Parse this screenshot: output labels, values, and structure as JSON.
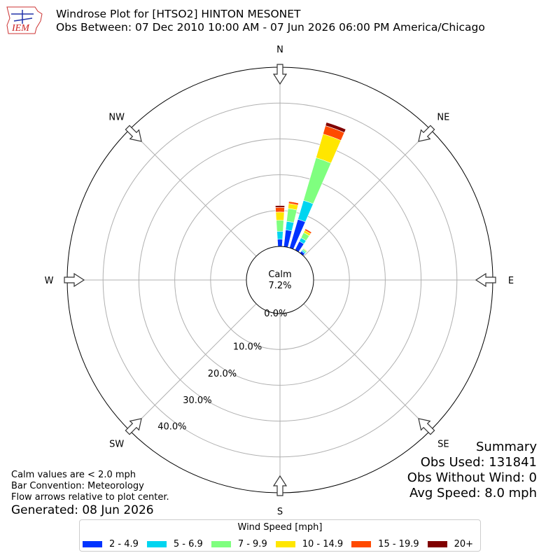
{
  "header": {
    "title_line1": "Windrose Plot for [HTSO2] HINTON MESONET",
    "title_line2": "Obs Between: 07 Dec 2010 10:00 AM - 07 Jun 2026 06:00 PM America/Chicago",
    "logo_text": "IEM"
  },
  "summary": {
    "heading": "Summary",
    "obs_used": "Obs Used: 131841",
    "obs_without_wind": "Obs Without Wind: 0",
    "avg_speed": "Avg Speed: 8.0 mph"
  },
  "notes": {
    "calm_note": "Calm values are < 2.0 mph",
    "bar_convention": "Bar Convention: Meteorology",
    "flow_arrows": "Flow arrows relative to plot center.",
    "generated": "Generated: 08 Jun 2026"
  },
  "chart_data": {
    "type": "windrose",
    "calm_label": "Calm",
    "calm_percent": 7.2,
    "calm_text": "7.2%",
    "direction_labels": [
      "N",
      "NE",
      "E",
      "SE",
      "S",
      "SW",
      "W",
      "NW"
    ],
    "radial_ticks": [
      {
        "value": 0,
        "label": "0.0%"
      },
      {
        "value": 10,
        "label": "10.0%"
      },
      {
        "value": 20,
        "label": "20.0%"
      },
      {
        "value": 30,
        "label": "30.0%"
      },
      {
        "value": 40,
        "label": "40.0%"
      }
    ],
    "rmax": 50,
    "legend_title": "Wind Speed [mph]",
    "speed_bins": [
      {
        "label": "2 - 4.9",
        "color": "#0033ff"
      },
      {
        "label": "5 - 6.9",
        "color": "#00d5f0"
      },
      {
        "label": "7 - 9.9",
        "color": "#7fff7f"
      },
      {
        "label": "10 - 14.9",
        "color": "#ffe600"
      },
      {
        "label": "15 - 19.9",
        "color": "#ff4a00"
      },
      {
        "label": "20+",
        "color": "#800000"
      }
    ],
    "sectors": [
      {
        "direction": 0,
        "values": [
          2.0,
          2.2,
          3.1,
          2.3,
          1.3,
          0.5
        ]
      },
      {
        "direction": 10,
        "values": [
          4.7,
          2.4,
          3.6,
          1.4,
          0.6,
          0.1
        ]
      },
      {
        "direction": 20,
        "values": [
          8.3,
          5.5,
          12.4,
          6.9,
          2.4,
          1.0
        ]
      },
      {
        "direction": 30,
        "values": [
          2.7,
          1.1,
          1.6,
          0.7,
          0.5,
          0.1
        ]
      },
      {
        "direction": 40,
        "values": [
          0.7,
          0.4,
          0.4,
          0.2,
          0.1,
          0.0
        ]
      }
    ],
    "grid": true,
    "legend_position": "bottom-center"
  }
}
